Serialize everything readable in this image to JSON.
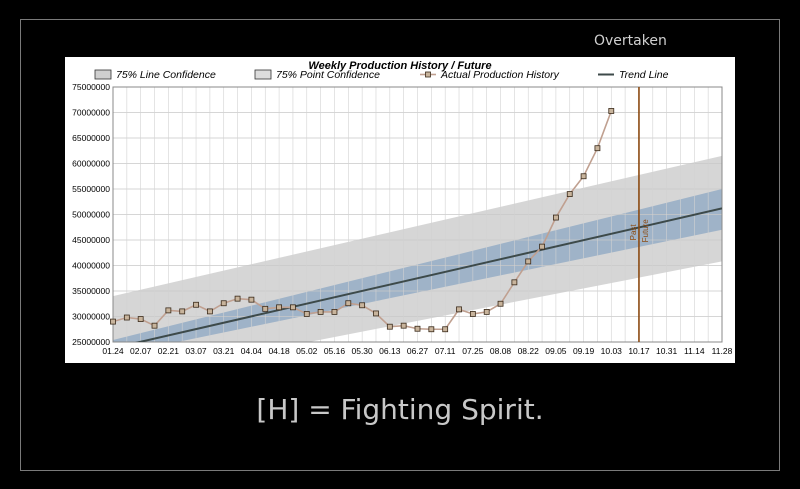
{
  "header": {
    "tag": "Overtaken"
  },
  "caption": "[H] = Fighting Spirit.",
  "colors": {
    "point_band": "#d6d6d6",
    "line_band": "#9fb3c8",
    "actual_line": "#c0a090",
    "marker_fill": "#c8b49c",
    "trend": "#3d4a4a",
    "divider": "#8b4a12"
  },
  "chart_data": {
    "type": "line",
    "title": "Weekly Production History / Future",
    "legend": [
      {
        "label": "75% Line Confidence",
        "kind": "swatch"
      },
      {
        "label": "75% Point Confidence",
        "kind": "swatch"
      },
      {
        "label": "Actual Production History",
        "kind": "marker"
      },
      {
        "label": "Trend Line",
        "kind": "line"
      }
    ],
    "legend_position": "top",
    "grid": true,
    "ylim": [
      25000000,
      75000000
    ],
    "yticks": [
      "75000000",
      "70000000",
      "65000000",
      "60000000",
      "55000000",
      "50000000",
      "45000000",
      "40000000",
      "35000000",
      "30000000",
      "25000000"
    ],
    "xticks": [
      "01.24",
      "02.07",
      "02.21",
      "03.07",
      "03.21",
      "04.04",
      "04.18",
      "05.02",
      "05.16",
      "05.30",
      "06.13",
      "06.27",
      "07.11",
      "07.25",
      "08.08",
      "08.22",
      "09.05",
      "09.19",
      "10.03",
      "10.17",
      "10.31",
      "11.14",
      "11.28"
    ],
    "series": [
      {
        "name": "Actual Production History",
        "values": [
          29000000,
          29800000,
          29500000,
          28200000,
          31200000,
          31000000,
          32300000,
          31000000,
          32600000,
          33500000,
          33300000,
          31500000,
          31800000,
          31800000,
          30500000,
          30900000,
          30900000,
          32600000,
          32200000,
          30600000,
          28000000,
          28200000,
          27600000,
          27500000,
          27500000,
          31400000,
          30500000,
          30900000,
          32500000,
          36700000,
          40800000,
          43700000,
          49400000,
          54000000,
          57500000,
          63000000,
          70300000
        ]
      }
    ],
    "trend": {
      "start": 23800000,
      "end": 51200000
    },
    "line_confidence": {
      "start_low": 22400000,
      "start_high": 25400000,
      "end_low": 47000000,
      "end_high": 55000000
    },
    "point_confidence": {
      "start_low": 17500000,
      "start_high": 34000000,
      "end_low": 40800000,
      "end_high": 61500000
    },
    "divider": {
      "week": 38,
      "labels": [
        "Past",
        "Future"
      ]
    }
  }
}
